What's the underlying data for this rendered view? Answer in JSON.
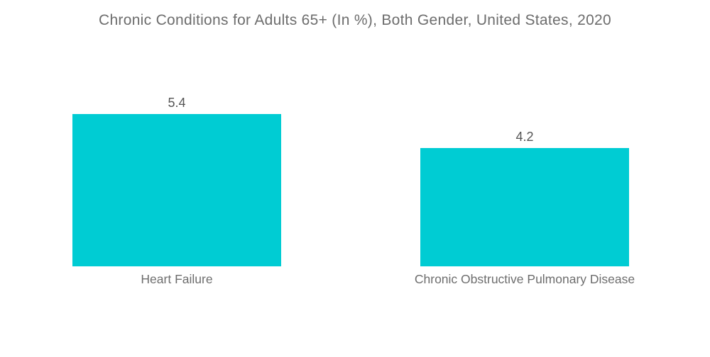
{
  "chart_data": {
    "type": "bar",
    "title": "Chronic Conditions for Adults 65+ (In %), Both Gender, United States, 2020",
    "categories": [
      "Heart Failure",
      "Chronic Obstructive Pulmonary Disease"
    ],
    "values": [
      5.4,
      4.2
    ],
    "xlabel": "",
    "ylabel": "",
    "ylim": [
      0,
      6
    ],
    "unit": "%",
    "grid": false,
    "legend": "none",
    "value_labels_shown": true,
    "bar_color": "#00ccd3",
    "title_color": "#6d6d6d",
    "category_label_color": "#6d6d6d",
    "value_label_color": "#545454",
    "background_color": "#ffffff"
  }
}
